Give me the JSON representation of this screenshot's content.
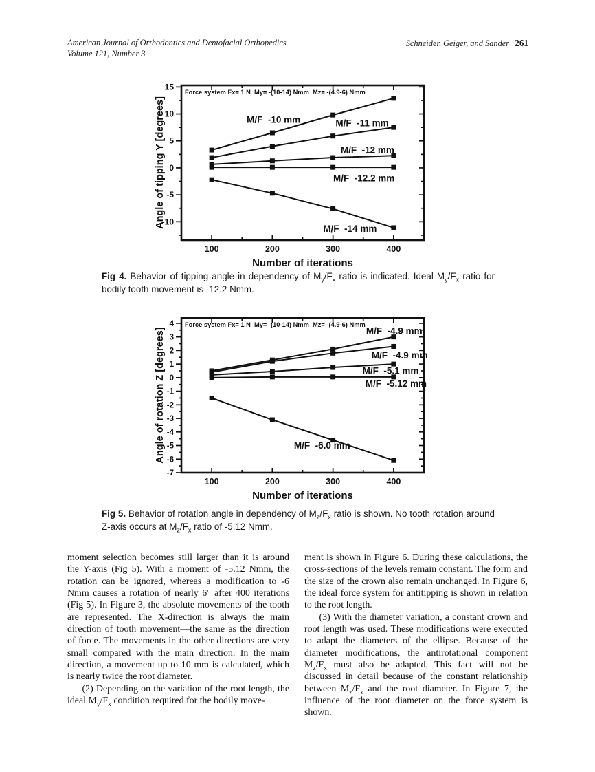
{
  "header": {
    "journal_line1": "American Journal of Orthodontics and Dentofacial Orthopedics",
    "journal_line2": "Volume 121, Number 3",
    "authors": "Schneider, Geiger, and Sander",
    "page_number": "261"
  },
  "chart_data": [
    {
      "id": "fig4",
      "type": "line",
      "annotation": "Force system Fx= 1 N  My= -(10-14) Nmm  Mz= -(4.9-6) Nmm",
      "xlabel": "Number of iterations",
      "ylabel": "Angle of tipping Y [degrees]",
      "x": [
        100,
        200,
        300,
        400
      ],
      "xlim": [
        50,
        450
      ],
      "ylim": [
        -13.4,
        15.3
      ],
      "xticks": [
        100,
        200,
        300,
        400
      ],
      "yticks": [
        -10,
        -5,
        0,
        5,
        10,
        15
      ],
      "x_minor_step": 50,
      "y_minor_step": 2.5,
      "ytick_font": 12,
      "grid": false,
      "legend_position": "inline-labels",
      "marker": "filled-square",
      "line_color": "#111111",
      "series": [
        {
          "name": "M/F  -10 mm",
          "values": [
            3.3,
            6.5,
            9.8,
            12.9
          ],
          "label_pos": [
            202,
            8.9
          ]
        },
        {
          "name": "M/F  -11 mm",
          "values": [
            1.9,
            4.0,
            5.9,
            7.5
          ],
          "label_pos": [
            348,
            8.3
          ]
        },
        {
          "name": "M/F  -12 mm",
          "values": [
            0.65,
            1.3,
            1.9,
            2.25
          ],
          "label_pos": [
            357,
            3.3
          ]
        },
        {
          "name": "M/F  -12.2 mm",
          "values": [
            0.1,
            0.1,
            0.1,
            0.1
          ],
          "label_pos": [
            351,
            -1.9
          ]
        },
        {
          "name": "M/F  -14 mm",
          "values": [
            -2.2,
            -4.7,
            -7.6,
            -11.1
          ],
          "label_pos": [
            328,
            -11.3
          ]
        }
      ]
    },
    {
      "id": "fig5",
      "type": "line",
      "annotation": "Force system Fx= 1 N  My= -(10-14) Nmm  Mz= -(4.9-6) Nmm",
      "xlabel": "Number of iterations",
      "ylabel": "Angle of rotation Z [degrees]",
      "x": [
        100,
        200,
        300,
        400
      ],
      "xlim": [
        50,
        450
      ],
      "ylim": [
        -7,
        4.4
      ],
      "xticks": [
        100,
        200,
        300,
        400
      ],
      "yticks": [
        -7,
        -6,
        -5,
        -4,
        -3,
        -2,
        -1,
        0,
        1,
        2,
        3,
        4
      ],
      "x_minor_step": 50,
      "y_minor_step": 0.5,
      "ytick_font": 11.5,
      "grid": false,
      "legend_position": "inline-labels",
      "marker": "filled-square",
      "line_color": "#111111",
      "series": [
        {
          "name": "M/F  -4.9 mm",
          "values": [
            0.5,
            1.3,
            2.1,
            3.0
          ],
          "label_pos": [
            401,
            3.45
          ]
        },
        {
          "name": "M/F  -4.9 mm",
          "values": [
            0.4,
            1.2,
            1.8,
            2.3
          ],
          "label_pos": [
            410,
            1.65
          ]
        },
        {
          "name": "M/F  -5.1 mm",
          "values": [
            0.2,
            0.45,
            0.75,
            1.0
          ],
          "label_pos": [
            395,
            0.5
          ]
        },
        {
          "name": "M/F  -5.12 mm",
          "values": [
            0.0,
            0.05,
            0.05,
            0.05
          ],
          "label_pos": [
            404,
            -0.45
          ]
        },
        {
          "name": "M/F  -6.0 mm",
          "values": [
            -1.5,
            -3.1,
            -4.6,
            -6.1
          ],
          "label_pos": [
            282,
            -5.0
          ]
        }
      ]
    }
  ],
  "captions": {
    "fig4": "**Fig 4.** Behavior of tipping angle in dependency of M_y/F_x ratio is indicated. Ideal M_y/F_x ratio for bodily tooth movement is -12.2 Nmm.",
    "fig5": "**Fig 5.** Behavior of rotation angle in dependency of M_z/F_x ratio is shown. No tooth rotation around Z-axis occurs at M_z/F_x ratio of -5.12 Nmm."
  },
  "body": {
    "left_column": [
      "moment selection becomes still larger than it is around the Y-axis (Fig 5). With a moment of -5.12 Nmm, the rotation can be ignored, whereas a modification to -6 Nmm causes a rotation of nearly 6° after 400 iterations (Fig 5). In Figure 3, the absolute movements of the tooth are represented. The X-direction is always the main direction of tooth movement—the same as the direction of force. The movements in the other directions are very small compared with the main direction. In the main direction, a movement up to 10 mm is calculated, which is nearly twice the root diameter.",
      "(2) Depending on the variation of the root length, the ideal M_y/F_x condition required for the bodily move-"
    ],
    "right_column": [
      "ment is shown in Figure 6. During these calculations, the cross-sections of the levels remain constant. The form and the size of the crown also remain unchanged. In Figure 6, the ideal force system for antitipping is shown in relation to the root length.",
      "(3) With the diameter variation, a constant crown and root length was used. These modifications were executed to adapt the diameters of the ellipse. Because of the diameter modifications, the antirotational component M_z/F_x must also be adapted. This fact will not be discussed in detail because of the constant relationship between M_z/F_x and the root diameter. In Figure 7, the influence of the root diameter on the force system is shown."
    ]
  }
}
